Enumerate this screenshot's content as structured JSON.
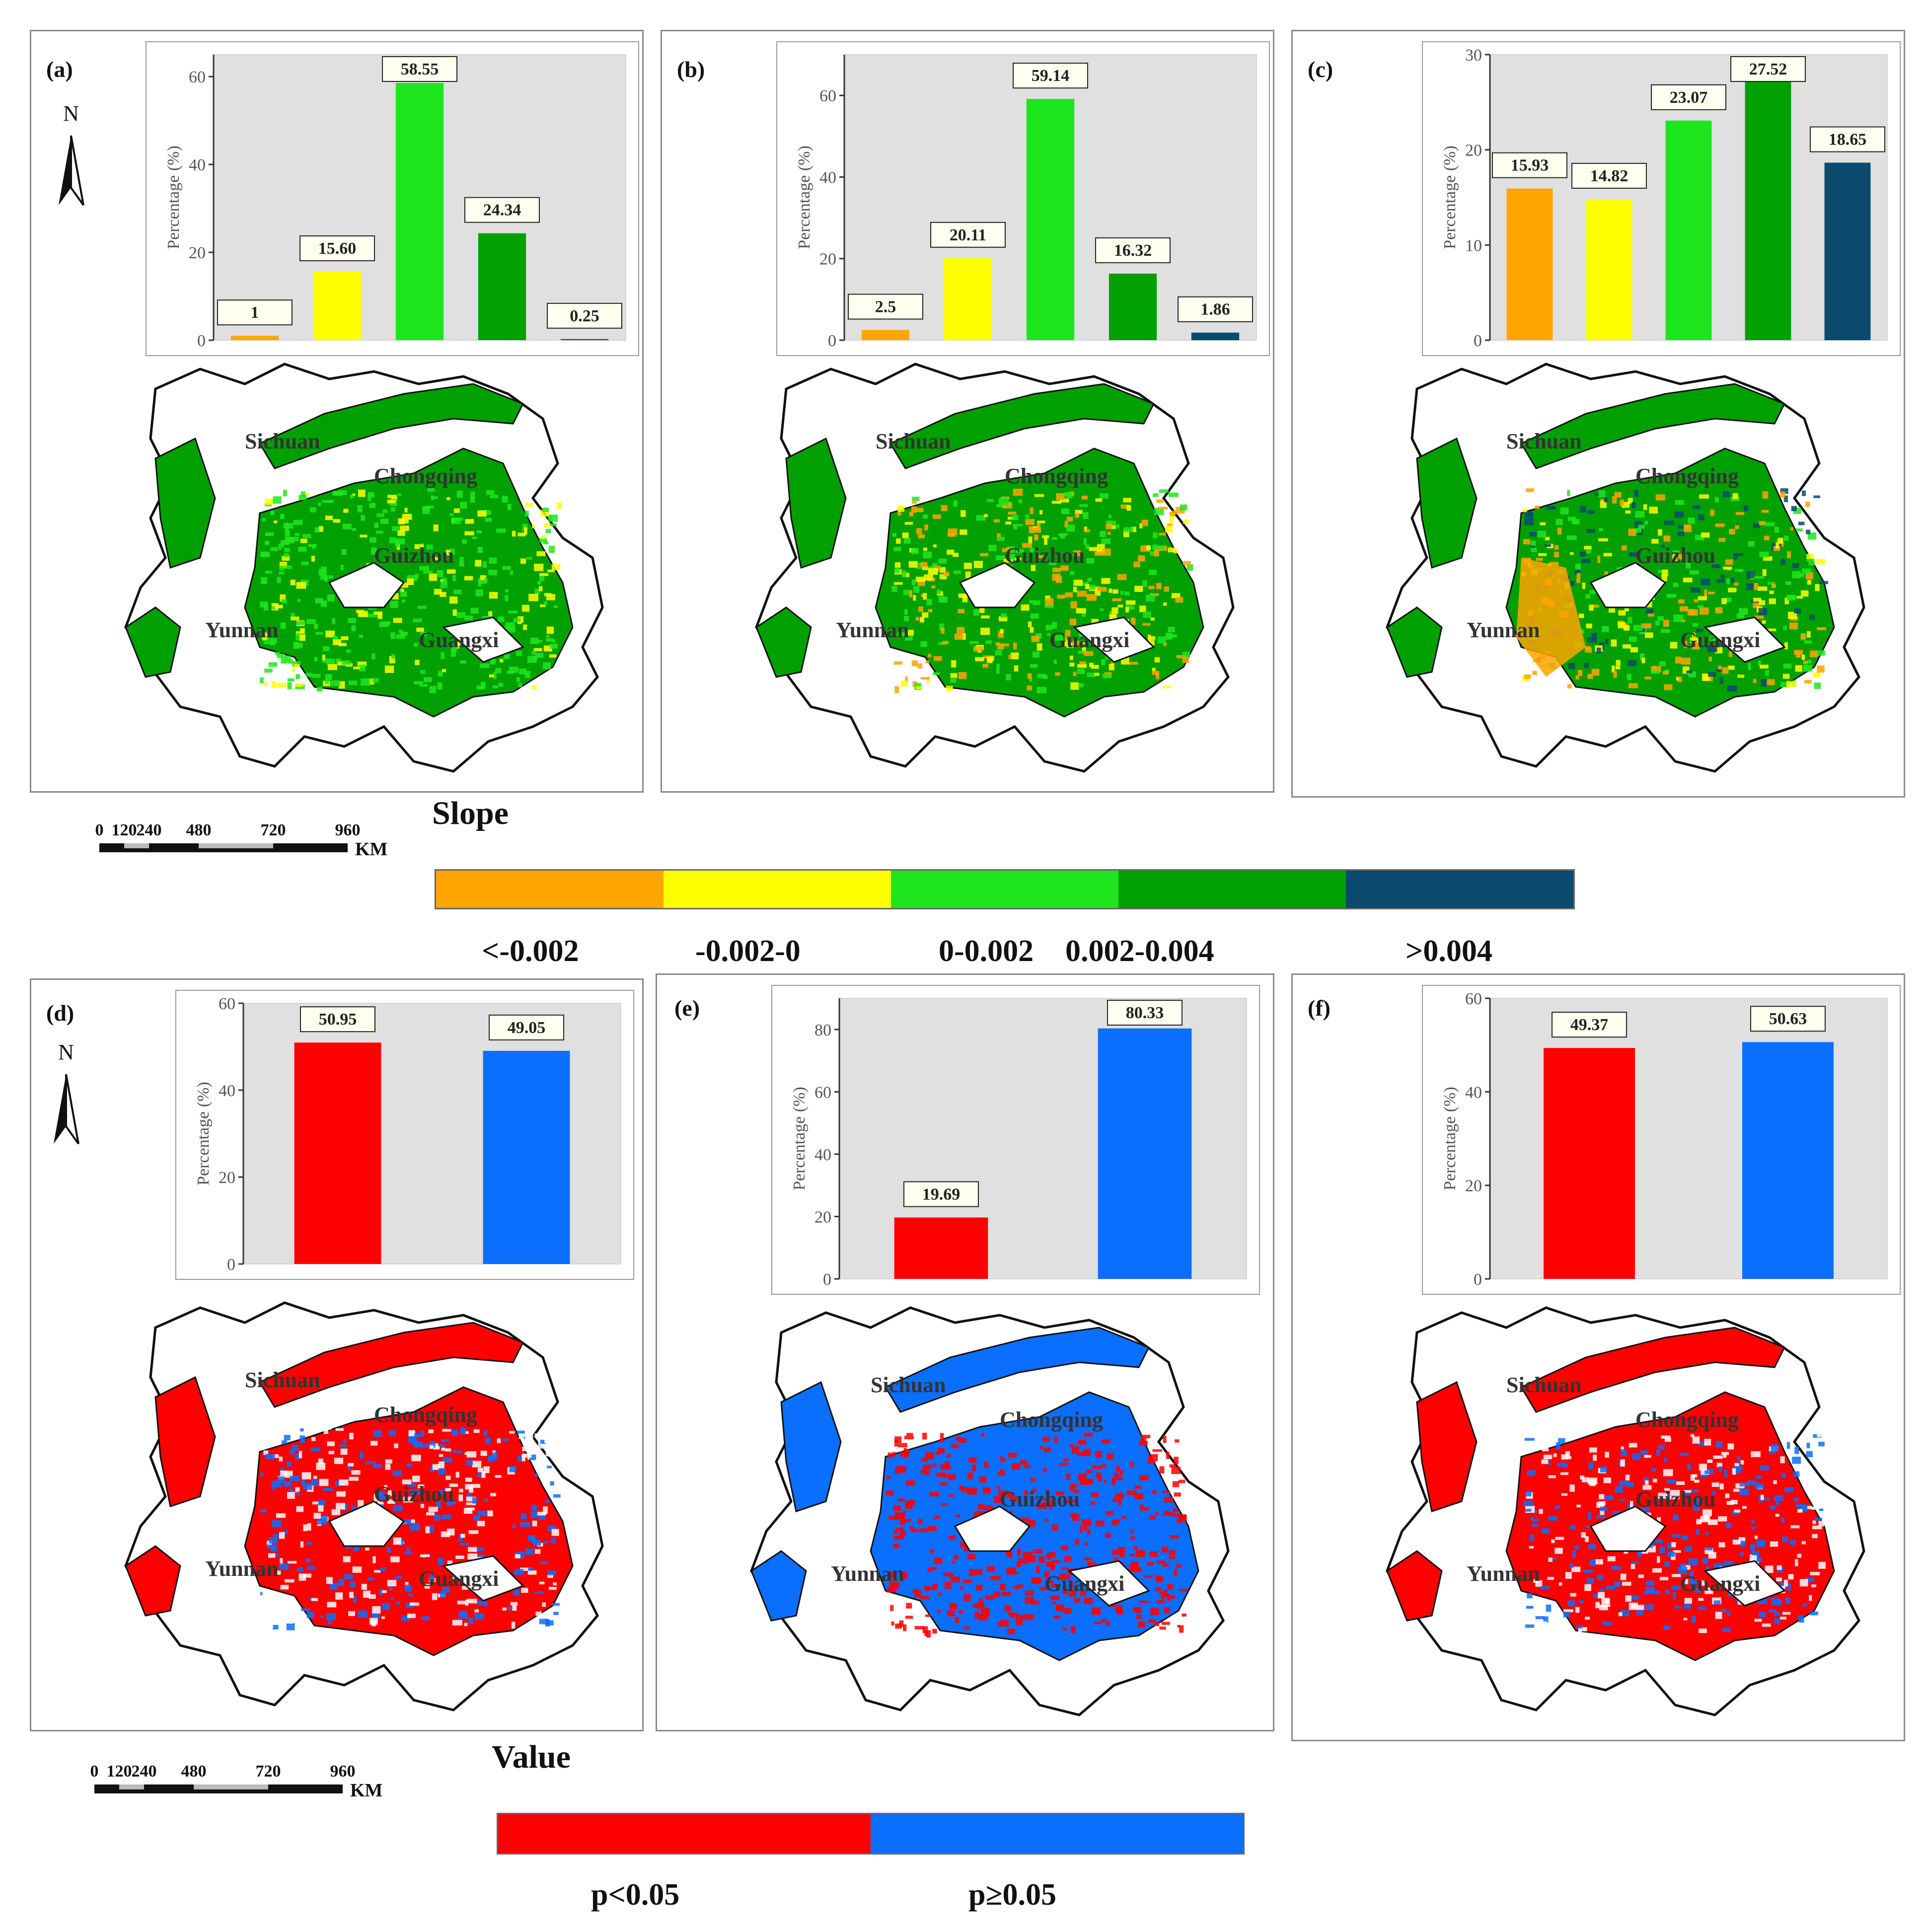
{
  "top_legend": {
    "title": "Slope",
    "classes": [
      {
        "label": "<-0.002",
        "color": "#ffa500"
      },
      {
        "label": "-0.002-0",
        "color": "#ffff00"
      },
      {
        "label": "0-0.002",
        "color": "#1ee61e"
      },
      {
        "label": "0.002-0.004",
        "color": "#00a000"
      },
      {
        "label": ">0.004",
        "color": "#0a4a6e"
      }
    ]
  },
  "bottom_legend": {
    "title": "Value",
    "classes": [
      {
        "label": "p<0.05",
        "color": "#ff0000"
      },
      {
        "label": "p≥0.05",
        "color": "#0a6eff"
      }
    ]
  },
  "scale_bar": {
    "ticks": [
      "0",
      "120",
      "240",
      "480",
      "720",
      "960"
    ],
    "unit": "KM"
  },
  "north_label": "N",
  "province_labels": [
    "Sichuan",
    "Chongqing",
    "Guizhou",
    "Yunnan",
    "Guangxi"
  ],
  "chart_data": [
    {
      "panel": "(a)",
      "type": "bar",
      "ylabel": "Percentage (%)",
      "ylim": [
        0,
        65
      ],
      "yticks": [
        0,
        20,
        40,
        60
      ],
      "categories": [
        "<-0.002",
        "-0.002-0",
        "0-0.002",
        "0.002-0.004",
        ">0.004"
      ],
      "values": [
        1,
        15.6,
        58.55,
        24.34,
        0.25
      ],
      "labels": [
        "1",
        "15.60",
        "58.55",
        "24.34",
        "0.25"
      ],
      "colors": [
        "#ffa500",
        "#ffff00",
        "#1ee61e",
        "#00a000",
        "#0a4a6e"
      ]
    },
    {
      "panel": "(b)",
      "type": "bar",
      "ylabel": "Percentage (%)",
      "ylim": [
        0,
        70
      ],
      "yticks": [
        0,
        20,
        40,
        60
      ],
      "categories": [
        "<-0.002",
        "-0.002-0",
        "0-0.002",
        "0.002-0.004",
        ">0.004"
      ],
      "values": [
        2.5,
        20.11,
        59.14,
        16.32,
        1.86
      ],
      "labels": [
        "2.5",
        "20.11",
        "59.14",
        "16.32",
        "1.86"
      ],
      "colors": [
        "#ffa500",
        "#ffff00",
        "#1ee61e",
        "#00a000",
        "#0a4a6e"
      ]
    },
    {
      "panel": "(c)",
      "type": "bar",
      "ylabel": "Percentage (%)",
      "ylim": [
        0,
        30
      ],
      "yticks": [
        0,
        10,
        20,
        30
      ],
      "categories": [
        "<-0.002",
        "-0.002-0",
        "0-0.002",
        "0.002-0.004",
        ">0.004"
      ],
      "values": [
        15.93,
        14.82,
        23.07,
        27.52,
        18.65
      ],
      "labels": [
        "15.93",
        "14.82",
        "23.07",
        "27.52",
        "18.65"
      ],
      "colors": [
        "#ffa500",
        "#ffff00",
        "#1ee61e",
        "#00a000",
        "#0a4a6e"
      ]
    },
    {
      "panel": "(d)",
      "type": "bar",
      "ylabel": "Percentage (%)",
      "ylim": [
        0,
        60
      ],
      "yticks": [
        0,
        20,
        40,
        60
      ],
      "categories": [
        "p<0.05",
        "p≥0.05"
      ],
      "values": [
        50.95,
        49.05
      ],
      "labels": [
        "50.95",
        "49.05"
      ],
      "colors": [
        "#ff0000",
        "#0a6eff"
      ]
    },
    {
      "panel": "(e)",
      "type": "bar",
      "ylabel": "Percentage (%)",
      "ylim": [
        0,
        90
      ],
      "yticks": [
        0,
        20,
        40,
        60,
        80
      ],
      "categories": [
        "p<0.05",
        "p≥0.05"
      ],
      "values": [
        19.69,
        80.33
      ],
      "labels": [
        "19.69",
        "80.33"
      ],
      "colors": [
        "#ff0000",
        "#0a6eff"
      ]
    },
    {
      "panel": "(f)",
      "type": "bar",
      "ylabel": "Percentage (%)",
      "ylim": [
        0,
        60
      ],
      "yticks": [
        0,
        20,
        40,
        60
      ],
      "categories": [
        "p<0.05",
        "p≥0.05"
      ],
      "values": [
        49.37,
        50.63
      ],
      "labels": [
        "49.37",
        "50.63"
      ],
      "colors": [
        "#ff0000",
        "#0a6eff"
      ]
    }
  ]
}
